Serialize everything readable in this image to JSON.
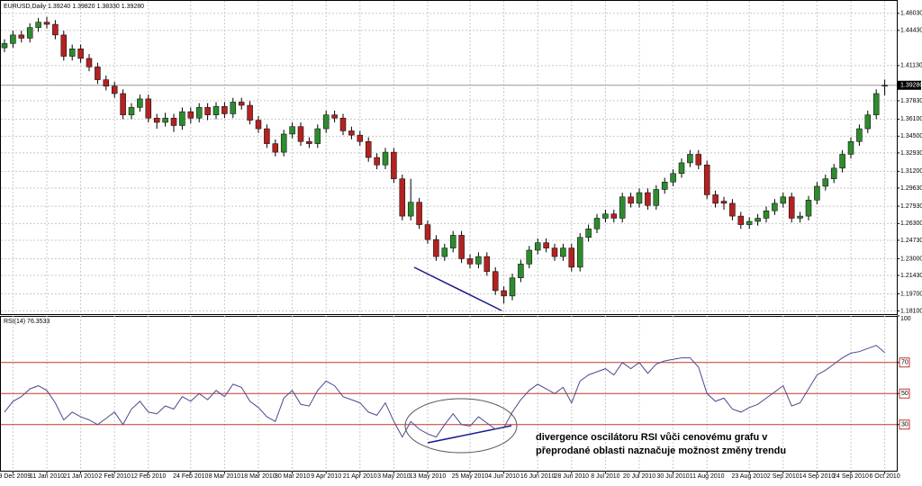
{
  "chart_data": [
    {
      "type": "candlestick",
      "title": "EURUSD,Daily  1.39240 1.39820 1.38330 1.39280",
      "up_color": "#2e8b2e",
      "down_color": "#b22222",
      "ylim": [
        1.178,
        1.472
      ],
      "yticks": [
        {
          "value": 1.4603,
          "label": "1.46030"
        },
        {
          "value": 1.4443,
          "label": "1.44430"
        },
        {
          "value": 1.4113,
          "label": "1.41130"
        },
        {
          "value": 1.3783,
          "label": "1.37830"
        },
        {
          "value": 1.361,
          "label": "1.36100"
        },
        {
          "value": 1.345,
          "label": "1.34500"
        },
        {
          "value": 1.3293,
          "label": "1.32930"
        },
        {
          "value": 1.312,
          "label": "1.31200"
        },
        {
          "value": 1.2963,
          "label": "1.29630"
        },
        {
          "value": 1.2793,
          "label": "1.27930"
        },
        {
          "value": 1.263,
          "label": "1.26300"
        },
        {
          "value": 1.2473,
          "label": "1.24730"
        },
        {
          "value": 1.23,
          "label": "1.23000"
        },
        {
          "value": 1.2143,
          "label": "1.21430"
        },
        {
          "value": 1.197,
          "label": "1.19700"
        },
        {
          "value": 1.181,
          "label": "1.18100"
        }
      ],
      "last_price": {
        "value": 1.3928,
        "label": "1.39280"
      },
      "grid": true,
      "ohlc": [
        [
          1.428,
          1.436,
          1.424,
          1.432
        ],
        [
          1.432,
          1.444,
          1.428,
          1.44
        ],
        [
          1.44,
          1.444,
          1.433,
          1.437
        ],
        [
          1.437,
          1.451,
          1.433,
          1.447
        ],
        [
          1.447,
          1.456,
          1.443,
          1.452
        ],
        [
          1.452,
          1.457,
          1.446,
          1.45
        ],
        [
          1.45,
          1.454,
          1.436,
          1.44
        ],
        [
          1.44,
          1.444,
          1.416,
          1.42
        ],
        [
          1.42,
          1.431,
          1.416,
          1.427
        ],
        [
          1.427,
          1.431,
          1.414,
          1.418
        ],
        [
          1.418,
          1.422,
          1.406,
          1.41
        ],
        [
          1.41,
          1.414,
          1.394,
          1.398
        ],
        [
          1.398,
          1.402,
          1.388,
          1.392
        ],
        [
          1.392,
          1.396,
          1.381,
          1.385
        ],
        [
          1.385,
          1.389,
          1.361,
          1.365
        ],
        [
          1.365,
          1.376,
          1.361,
          1.372
        ],
        [
          1.372,
          1.384,
          1.368,
          1.38
        ],
        [
          1.38,
          1.384,
          1.358,
          1.362
        ],
        [
          1.362,
          1.366,
          1.352,
          1.358
        ],
        [
          1.358,
          1.367,
          1.354,
          1.362
        ],
        [
          1.362,
          1.366,
          1.349,
          1.355
        ],
        [
          1.355,
          1.372,
          1.351,
          1.368
        ],
        [
          1.368,
          1.372,
          1.357,
          1.362
        ],
        [
          1.362,
          1.376,
          1.358,
          1.372
        ],
        [
          1.372,
          1.376,
          1.36,
          1.365
        ],
        [
          1.365,
          1.377,
          1.361,
          1.373
        ],
        [
          1.373,
          1.377,
          1.362,
          1.366
        ],
        [
          1.366,
          1.381,
          1.362,
          1.377
        ],
        [
          1.377,
          1.381,
          1.37,
          1.374
        ],
        [
          1.374,
          1.378,
          1.356,
          1.36
        ],
        [
          1.36,
          1.364,
          1.348,
          1.352
        ],
        [
          1.352,
          1.356,
          1.334,
          1.338
        ],
        [
          1.338,
          1.342,
          1.326,
          1.33
        ],
        [
          1.33,
          1.351,
          1.326,
          1.347
        ],
        [
          1.347,
          1.358,
          1.343,
          1.354
        ],
        [
          1.354,
          1.358,
          1.336,
          1.34
        ],
        [
          1.34,
          1.344,
          1.334,
          1.338
        ],
        [
          1.338,
          1.356,
          1.334,
          1.352
        ],
        [
          1.352,
          1.369,
          1.348,
          1.365
        ],
        [
          1.365,
          1.369,
          1.358,
          1.362
        ],
        [
          1.362,
          1.366,
          1.346,
          1.35
        ],
        [
          1.35,
          1.354,
          1.342,
          1.346
        ],
        [
          1.346,
          1.35,
          1.336,
          1.34
        ],
        [
          1.34,
          1.344,
          1.321,
          1.325
        ],
        [
          1.325,
          1.329,
          1.314,
          1.318
        ],
        [
          1.318,
          1.334,
          1.314,
          1.33
        ],
        [
          1.33,
          1.334,
          1.301,
          1.305
        ],
        [
          1.305,
          1.309,
          1.266,
          1.27
        ],
        [
          1.27,
          1.305,
          1.266,
          1.283
        ],
        [
          1.283,
          1.287,
          1.258,
          1.262
        ],
        [
          1.262,
          1.266,
          1.244,
          1.248
        ],
        [
          1.248,
          1.252,
          1.228,
          1.232
        ],
        [
          1.232,
          1.244,
          1.228,
          1.24
        ],
        [
          1.24,
          1.256,
          1.236,
          1.252
        ],
        [
          1.252,
          1.256,
          1.226,
          1.23
        ],
        [
          1.23,
          1.234,
          1.221,
          1.225
        ],
        [
          1.225,
          1.236,
          1.221,
          1.232
        ],
        [
          1.232,
          1.236,
          1.214,
          1.218
        ],
        [
          1.218,
          1.222,
          1.196,
          1.2
        ],
        [
          1.2,
          1.204,
          1.188,
          1.195
        ],
        [
          1.195,
          1.216,
          1.191,
          1.212
        ],
        [
          1.212,
          1.229,
          1.208,
          1.225
        ],
        [
          1.225,
          1.242,
          1.221,
          1.238
        ],
        [
          1.238,
          1.249,
          1.234,
          1.245
        ],
        [
          1.245,
          1.249,
          1.236,
          1.24
        ],
        [
          1.24,
          1.244,
          1.228,
          1.232
        ],
        [
          1.232,
          1.244,
          1.228,
          1.24
        ],
        [
          1.24,
          1.244,
          1.218,
          1.222
        ],
        [
          1.222,
          1.254,
          1.218,
          1.25
        ],
        [
          1.25,
          1.262,
          1.246,
          1.258
        ],
        [
          1.258,
          1.272,
          1.254,
          1.268
        ],
        [
          1.268,
          1.276,
          1.264,
          1.272
        ],
        [
          1.272,
          1.276,
          1.264,
          1.268
        ],
        [
          1.268,
          1.292,
          1.264,
          1.288
        ],
        [
          1.288,
          1.292,
          1.278,
          1.282
        ],
        [
          1.282,
          1.296,
          1.278,
          1.292
        ],
        [
          1.292,
          1.296,
          1.276,
          1.28
        ],
        [
          1.28,
          1.299,
          1.276,
          1.295
        ],
        [
          1.295,
          1.306,
          1.291,
          1.302
        ],
        [
          1.302,
          1.314,
          1.298,
          1.31
        ],
        [
          1.31,
          1.324,
          1.306,
          1.32
        ],
        [
          1.32,
          1.332,
          1.316,
          1.328
        ],
        [
          1.328,
          1.332,
          1.314,
          1.318
        ],
        [
          1.318,
          1.322,
          1.286,
          1.29
        ],
        [
          1.29,
          1.294,
          1.278,
          1.282
        ],
        [
          1.284,
          1.288,
          1.276,
          1.282
        ],
        [
          1.282,
          1.286,
          1.266,
          1.27
        ],
        [
          1.27,
          1.274,
          1.258,
          1.262
        ],
        [
          1.262,
          1.269,
          1.258,
          1.265
        ],
        [
          1.265,
          1.272,
          1.261,
          1.268
        ],
        [
          1.268,
          1.279,
          1.264,
          1.275
        ],
        [
          1.275,
          1.286,
          1.271,
          1.282
        ],
        [
          1.282,
          1.292,
          1.278,
          1.288
        ],
        [
          1.288,
          1.292,
          1.264,
          1.268
        ],
        [
          1.268,
          1.274,
          1.264,
          1.27
        ],
        [
          1.27,
          1.289,
          1.266,
          1.285
        ],
        [
          1.285,
          1.302,
          1.281,
          1.298
        ],
        [
          1.298,
          1.309,
          1.294,
          1.305
        ],
        [
          1.305,
          1.319,
          1.301,
          1.315
        ],
        [
          1.315,
          1.332,
          1.311,
          1.328
        ],
        [
          1.328,
          1.344,
          1.324,
          1.34
        ],
        [
          1.34,
          1.356,
          1.336,
          1.352
        ],
        [
          1.352,
          1.369,
          1.348,
          1.365
        ],
        [
          1.365,
          1.389,
          1.361,
          1.385
        ],
        [
          1.3924,
          1.3982,
          1.3833,
          1.3928
        ]
      ]
    },
    {
      "type": "line",
      "title": "RSI(14) 76.3533",
      "color": "#4a4a8c",
      "level_color": "#c0392b",
      "ylim": [
        0,
        100
      ],
      "yticks": [
        30,
        50,
        70,
        100
      ],
      "levels": [
        30,
        50,
        70
      ],
      "grid": true,
      "categories": [
        null,
        "29 Dec 2009",
        null,
        null,
        null,
        "11 Jan 2010",
        null,
        null,
        null,
        "21 Jan 2010",
        null,
        null,
        null,
        "2 Feb 2010",
        null,
        null,
        null,
        "12 Feb 2010",
        null,
        null,
        null,
        null,
        "24 Feb 2010",
        null,
        null,
        null,
        "8 Mar 2010",
        null,
        null,
        null,
        "18 Mar 2010",
        null,
        null,
        null,
        "30 Mar 2010",
        null,
        null,
        null,
        "9 Apr 2010",
        null,
        null,
        null,
        "21 Apr 2010",
        null,
        null,
        null,
        "3 May 2010",
        null,
        null,
        null,
        "13 May 2010",
        null,
        null,
        null,
        null,
        "25 May 2010",
        null,
        null,
        null,
        "4 Jun 2010",
        null,
        null,
        null,
        "16 Jun 2010",
        null,
        null,
        null,
        "28 Jun 2010",
        null,
        null,
        null,
        "8 Jul 2010",
        null,
        null,
        null,
        "20 Jul 2010",
        null,
        null,
        null,
        "30 Jul 2010",
        null,
        null,
        null,
        "11 Aug 2010",
        null,
        null,
        null,
        null,
        "23 Aug 2010",
        null,
        null,
        null,
        "2 Sep 2010",
        null,
        null,
        null,
        "14 Sep 2010",
        null,
        null,
        null,
        "24 Sep 2010",
        null,
        null,
        null,
        "6 Oct 2010"
      ],
      "values": [
        38,
        45,
        48,
        53,
        55,
        52,
        44,
        33,
        38,
        35,
        33,
        30,
        34,
        38,
        30,
        40,
        45,
        38,
        37,
        42,
        40,
        48,
        45,
        50,
        46,
        52,
        48,
        56,
        54,
        45,
        41,
        35,
        32,
        47,
        52,
        43,
        42,
        52,
        58,
        55,
        48,
        46,
        44,
        38,
        36,
        44,
        32,
        22,
        32,
        27,
        24,
        22,
        30,
        37,
        30,
        29,
        35,
        31,
        27,
        28,
        38,
        46,
        52,
        56,
        53,
        50,
        54,
        44,
        58,
        62,
        64,
        66,
        62,
        70,
        66,
        70,
        63,
        69,
        71,
        72,
        73,
        73,
        67,
        50,
        45,
        47,
        40,
        38,
        41,
        43,
        47,
        51,
        55,
        42,
        44,
        53,
        62,
        65,
        69,
        73,
        76,
        77,
        79,
        81,
        76.3533
      ],
      "annotation": [
        "divergence oscilátoru RSI vůči cenovému grafu v",
        "přeprodané oblasti naznačuje možnost změny trendu"
      ]
    }
  ]
}
